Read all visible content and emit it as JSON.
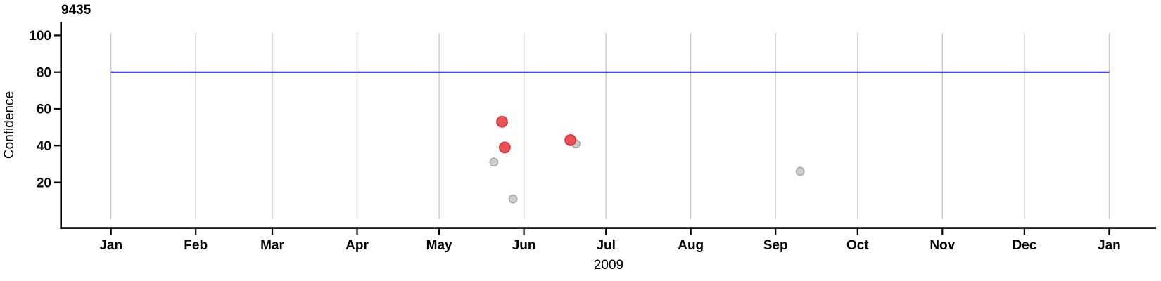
{
  "chart_data": {
    "type": "scatter",
    "title": "9435",
    "ylabel": "Confidence",
    "xlabel": "2009",
    "ylim": [
      0,
      100
    ],
    "y_ticks": [
      20,
      40,
      60,
      80,
      100
    ],
    "x_range": [
      "2009-01-01",
      "2010-01-01"
    ],
    "x_range_days": 365,
    "x_tick_months": [
      {
        "label": "Jan",
        "day": 0
      },
      {
        "label": "Feb",
        "day": 31
      },
      {
        "label": "Mar",
        "day": 59
      },
      {
        "label": "Apr",
        "day": 90
      },
      {
        "label": "May",
        "day": 120
      },
      {
        "label": "Jun",
        "day": 151
      },
      {
        "label": "Jul",
        "day": 181
      },
      {
        "label": "Aug",
        "day": 212
      },
      {
        "label": "Sep",
        "day": 243
      },
      {
        "label": "Oct",
        "day": 273
      },
      {
        "label": "Nov",
        "day": 304
      },
      {
        "label": "Dec",
        "day": 334
      },
      {
        "label": "Jan",
        "day": 365
      }
    ],
    "threshold_line": {
      "value": 80,
      "color": "#0d0dcd",
      "start_day": 0,
      "end_day": 365
    },
    "series": [
      {
        "name": "secondary-gray",
        "fill": "#cdcdcd",
        "stroke": "#a6a6a6",
        "radius": 5.6,
        "stroke_width": 1.6,
        "points": [
          {
            "date": "2009-05-21",
            "day": 140,
            "value": 31
          },
          {
            "date": "2009-05-28",
            "day": 147,
            "value": 11
          },
          {
            "date": "2009-06-19",
            "day": 170,
            "value": 41
          },
          {
            "date": "2009-09-10",
            "day": 252,
            "value": 26
          }
        ]
      },
      {
        "name": "primary-red",
        "fill": "#e95257",
        "stroke": "#dd383f",
        "radius": 7.4,
        "stroke_width": 2,
        "points": [
          {
            "date": "2009-05-24",
            "day": 143,
            "value": 53
          },
          {
            "date": "2009-05-25",
            "day": 144,
            "value": 39
          },
          {
            "date": "2009-06-17",
            "day": 168,
            "value": 43
          }
        ]
      }
    ],
    "grid": {
      "vertical_month_lines": true,
      "color": "#cbcbcb",
      "legend": "none"
    },
    "axis_color": "#000000",
    "tick_label_color": "#000000"
  }
}
